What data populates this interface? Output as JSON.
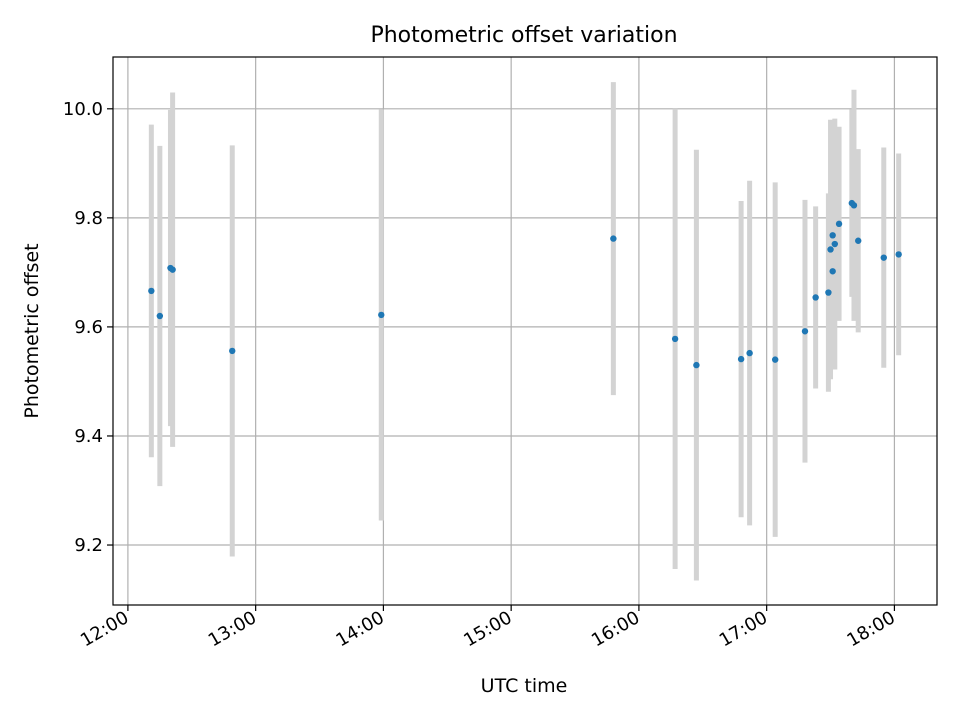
{
  "chart_data": {
    "type": "scatter",
    "title": "Photometric offset variation",
    "xlabel": "UTC time",
    "ylabel": "Photometric offset",
    "xlim": [
      "11:53",
      "18:20"
    ],
    "ylim": [
      9.09,
      10.095
    ],
    "grid": true,
    "x_ticks": [
      "12:00",
      "13:00",
      "14:00",
      "15:00",
      "16:00",
      "17:00",
      "18:00"
    ],
    "y_ticks": [
      "9.2",
      "9.4",
      "9.6",
      "9.8",
      "10.0"
    ],
    "colors": {
      "point": "#1f77b4",
      "errorbar": "#d3d3d3",
      "grid": "#b0b0b0"
    },
    "points": [
      {
        "x": "12:11",
        "y": 9.666,
        "err": 0.305
      },
      {
        "x": "12:15",
        "y": 9.62,
        "err": 0.312
      },
      {
        "x": "12:20",
        "y": 9.708,
        "err": 0.29
      },
      {
        "x": "12:21",
        "y": 9.705,
        "err": 0.325
      },
      {
        "x": "12:49",
        "y": 9.556,
        "err": 0.377
      },
      {
        "x": "13:59",
        "y": 9.622,
        "err": 0.377
      },
      {
        "x": "15:48",
        "y": 9.762,
        "err": 0.287
      },
      {
        "x": "16:17",
        "y": 9.578,
        "err": 0.422
      },
      {
        "x": "16:27",
        "y": 9.53,
        "err": 0.395
      },
      {
        "x": "16:48",
        "y": 9.541,
        "err": 0.29
      },
      {
        "x": "16:52",
        "y": 9.552,
        "err": 0.316
      },
      {
        "x": "17:04",
        "y": 9.54,
        "err": 0.325
      },
      {
        "x": "17:18",
        "y": 9.592,
        "err": 0.241
      },
      {
        "x": "17:23",
        "y": 9.654,
        "err": 0.167
      },
      {
        "x": "17:29",
        "y": 9.663,
        "err": 0.182
      },
      {
        "x": "17:30",
        "y": 9.742,
        "err": 0.238
      },
      {
        "x": "17:31",
        "y": 9.768,
        "err": 0.205
      },
      {
        "x": "17:31",
        "y": 9.702,
        "err": 0.18
      },
      {
        "x": "17:32",
        "y": 9.752,
        "err": 0.23
      },
      {
        "x": "17:34",
        "y": 9.789,
        "err": 0.178
      },
      {
        "x": "17:40",
        "y": 9.827,
        "err": 0.172
      },
      {
        "x": "17:41",
        "y": 9.823,
        "err": 0.212
      },
      {
        "x": "17:43",
        "y": 9.758,
        "err": 0.168
      },
      {
        "x": "17:55",
        "y": 9.727,
        "err": 0.202
      },
      {
        "x": "18:02",
        "y": 9.733,
        "err": 0.185
      }
    ]
  }
}
